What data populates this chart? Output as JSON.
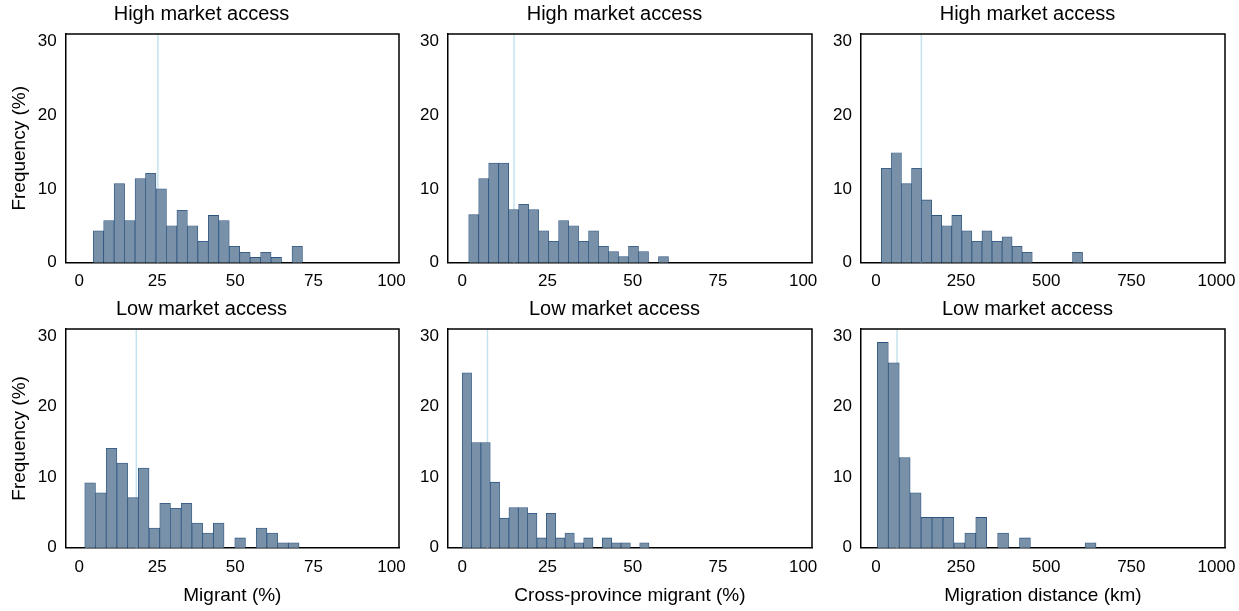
{
  "chart_data": [
    {
      "type": "histogram",
      "title": "High market access",
      "ylabel": "Frequency (%)",
      "color": "#7890a8",
      "grid": false,
      "bins": [
        4.5,
        7.85,
        11.2,
        14.55,
        17.9,
        21.25,
        24.6,
        27.95,
        31.3,
        34.65,
        38,
        41.35,
        44.7,
        48.05,
        51.4,
        54.75,
        58.1,
        61.45,
        64.8,
        68.15,
        71.5
      ],
      "values": [
        4.3,
        5.7,
        10.7,
        5.7,
        11.4,
        12.1,
        10.0,
        5.0,
        7.1,
        5.0,
        2.9,
        6.4,
        5.7,
        2.2,
        1.4,
        0.7,
        1.4,
        0.7,
        0,
        2.2
      ],
      "xlim": [
        -4.3,
        102.4
      ],
      "xticks": [
        0,
        25,
        50,
        75,
        100
      ],
      "ylim": [
        0,
        31
      ],
      "yticks": [
        0,
        10,
        20,
        30
      ],
      "ref_lines": [
        {
          "axis": "x",
          "value": 25.2,
          "color": "#c5e3ef"
        }
      ]
    },
    {
      "type": "histogram",
      "title": "High market access",
      "color": "#7890a8",
      "grid": false,
      "bins": [
        1.9,
        4.83,
        7.76,
        10.69,
        13.62,
        16.55,
        19.48,
        22.41,
        25.34,
        28.27,
        31.2,
        34.13,
        37.06,
        39.99,
        42.92,
        45.85,
        48.78,
        51.71,
        54.64,
        57.57,
        60.5
      ],
      "values": [
        6.5,
        11.4,
        13.5,
        13.5,
        7.2,
        7.9,
        7.2,
        4.3,
        2.9,
        5.7,
        5.0,
        2.9,
        4.3,
        2.2,
        1.5,
        0.8,
        2.2,
        1.5,
        0,
        0.8
      ],
      "xlim": [
        -4.2,
        102.6
      ],
      "xticks": [
        0,
        25,
        50,
        75,
        100
      ],
      "ylim": [
        0,
        31
      ],
      "yticks": [
        0,
        10,
        20,
        30
      ],
      "ref_lines": [
        {
          "axis": "x",
          "value": 15.2,
          "color": "#c5e3ef"
        }
      ]
    },
    {
      "type": "histogram",
      "title": "High market access",
      "color": "#7890a8",
      "grid": false,
      "bins": [
        16,
        45.5,
        75.1,
        104.6,
        134.2,
        163.7,
        193.2,
        222.8,
        252.3,
        281.9,
        311.4,
        340.9,
        370.5,
        400,
        429.6,
        459.1,
        488.6,
        518.2,
        547.7,
        577.3,
        606.8
      ],
      "values": [
        12.8,
        14.9,
        10.7,
        12.8,
        8.5,
        6.4,
        5.0,
        6.4,
        4.3,
        2.9,
        4.3,
        2.9,
        3.5,
        2.2,
        1.4,
        0,
        0,
        0,
        0,
        1.4
      ],
      "xlim": [
        -44,
        1025
      ],
      "xticks": [
        0,
        250,
        500,
        750,
        1000
      ],
      "ylim": [
        0,
        31
      ],
      "yticks": [
        0,
        10,
        20,
        30
      ],
      "ref_lines": [
        {
          "axis": "x",
          "value": 133.5,
          "color": "#c5e3ef"
        }
      ]
    },
    {
      "type": "histogram",
      "title": "Low market access",
      "xlabel": "Migrant (%)",
      "ylabel": "Frequency (%)",
      "color": "#7890a8",
      "grid": false,
      "bins": [
        1.8,
        5.23,
        8.66,
        12.09,
        15.52,
        18.95,
        22.38,
        25.81,
        29.24,
        32.67,
        36.1,
        39.53,
        42.96,
        46.39,
        49.82,
        53.25,
        56.68,
        60.11,
        63.54,
        66.97,
        70.4
      ],
      "values": [
        9.2,
        7.8,
        14.1,
        12.0,
        7.1,
        11.3,
        2.8,
        6.3,
        5.6,
        6.3,
        3.5,
        2.1,
        3.5,
        0,
        1.4,
        0,
        2.8,
        2.1,
        0.7,
        0.7
      ],
      "xlim": [
        -4.3,
        102.4
      ],
      "xticks": [
        0,
        25,
        50,
        75,
        100
      ],
      "ylim": [
        0,
        31
      ],
      "yticks": [
        0,
        10,
        20,
        30
      ],
      "ref_lines": [
        {
          "axis": "x",
          "value": 18.3,
          "color": "#c5e3ef"
        }
      ]
    },
    {
      "type": "histogram",
      "title": "Low market access",
      "xlabel": "Cross-province migrant (%)",
      "color": "#7890a8",
      "grid": false,
      "bins": [
        0,
        2.74,
        5.48,
        8.22,
        10.96,
        13.7,
        16.44,
        19.18,
        21.92,
        24.66,
        27.4,
        30.14,
        32.88,
        35.62,
        38.36,
        41.1,
        43.84,
        46.58,
        49.32,
        52.06,
        54.8
      ],
      "values": [
        24.8,
        14.9,
        14.9,
        9.3,
        4.2,
        5.7,
        5.7,
        4.9,
        1.4,
        4.9,
        1.4,
        2.1,
        0.7,
        1.4,
        0,
        1.4,
        0.7,
        0.7,
        0,
        0.7
      ],
      "xlim": [
        -4.2,
        102.6
      ],
      "xticks": [
        0,
        25,
        50,
        75,
        100
      ],
      "ylim": [
        0,
        31
      ],
      "yticks": [
        0,
        10,
        20,
        30
      ],
      "ref_lines": [
        {
          "axis": "x",
          "value": 7.4,
          "color": "#c5e3ef"
        }
      ]
    },
    {
      "type": "histogram",
      "title": "Low market access",
      "xlabel": "Migration distance (km)",
      "color": "#7890a8",
      "grid": false,
      "bins": [
        4.3,
        36.4,
        68.5,
        100.6,
        132.7,
        164.8,
        196.9,
        229,
        261.1,
        293.2,
        325.3,
        357.4,
        389.5,
        421.6,
        453.7,
        485.8,
        517.9,
        550,
        582.1,
        614.2,
        646.3
      ],
      "values": [
        29.1,
        26.2,
        12.8,
        7.8,
        4.3,
        4.3,
        4.3,
        0.7,
        2.1,
        4.3,
        0,
        2.1,
        0,
        1.4,
        0,
        0,
        0,
        0,
        0,
        0.7
      ],
      "xlim": [
        -44,
        1025
      ],
      "xticks": [
        0,
        250,
        500,
        750,
        1000
      ],
      "ylim": [
        0,
        31
      ],
      "yticks": [
        0,
        10,
        20,
        30
      ],
      "ref_lines": [
        {
          "axis": "x",
          "value": 62,
          "color": "#c5e3ef"
        }
      ]
    }
  ]
}
